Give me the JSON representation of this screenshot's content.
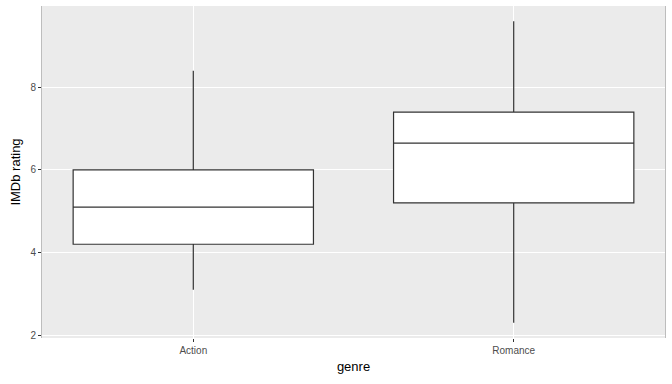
{
  "chart_data": {
    "type": "box",
    "xlabel": "genre",
    "ylabel": "IMDb rating",
    "categories": [
      "Action",
      "Romance"
    ],
    "boxes": [
      {
        "category": "Action",
        "min": 3.1,
        "q1": 4.2,
        "median": 5.1,
        "q3": 6.0,
        "max": 8.4
      },
      {
        "category": "Romance",
        "min": 2.3,
        "q1": 5.2,
        "median": 6.65,
        "q3": 7.4,
        "max": 9.6
      }
    ],
    "ylim": [
      1.93,
      9.97
    ],
    "yticks": [
      2,
      4,
      6,
      8
    ],
    "grid": true
  }
}
